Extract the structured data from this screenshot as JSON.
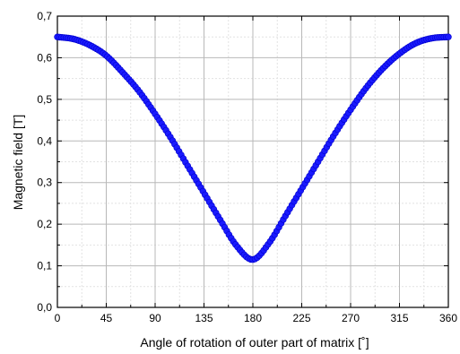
{
  "chart_data": {
    "type": "scatter",
    "title": "",
    "xlabel": "Angle of rotation of outer part of matrix [˚]",
    "ylabel": "Magnetic field [T]",
    "xlim": [
      0,
      360
    ],
    "ylim": [
      0,
      0.7
    ],
    "x_ticks": [
      0,
      45,
      90,
      135,
      180,
      225,
      270,
      315,
      360
    ],
    "x_tick_labels": [
      "0",
      "45",
      "90",
      "135",
      "180",
      "225",
      "270",
      "315",
      "360"
    ],
    "y_ticks": [
      0,
      0.1,
      0.2,
      0.3,
      0.4,
      0.5,
      0.6,
      0.7
    ],
    "y_tick_labels": [
      "0,0",
      "0,1",
      "0,2",
      "0,3",
      "0,4",
      "0,5",
      "0,6",
      "0,7"
    ],
    "grid": true,
    "legend": "none",
    "series": [
      {
        "color": "#1a1aff",
        "marker": "circle",
        "x": [
          0,
          15,
          30,
          45,
          60,
          75,
          90,
          105,
          120,
          135,
          150,
          165,
          180,
          195,
          210,
          225,
          240,
          255,
          270,
          285,
          300,
          315,
          330,
          345,
          360
        ],
        "y": [
          0.65,
          0.645,
          0.63,
          0.605,
          0.565,
          0.52,
          0.465,
          0.405,
          0.34,
          0.275,
          0.21,
          0.148,
          0.115,
          0.155,
          0.22,
          0.285,
          0.35,
          0.415,
          0.475,
          0.53,
          0.575,
          0.61,
          0.635,
          0.647,
          0.65
        ]
      }
    ]
  }
}
